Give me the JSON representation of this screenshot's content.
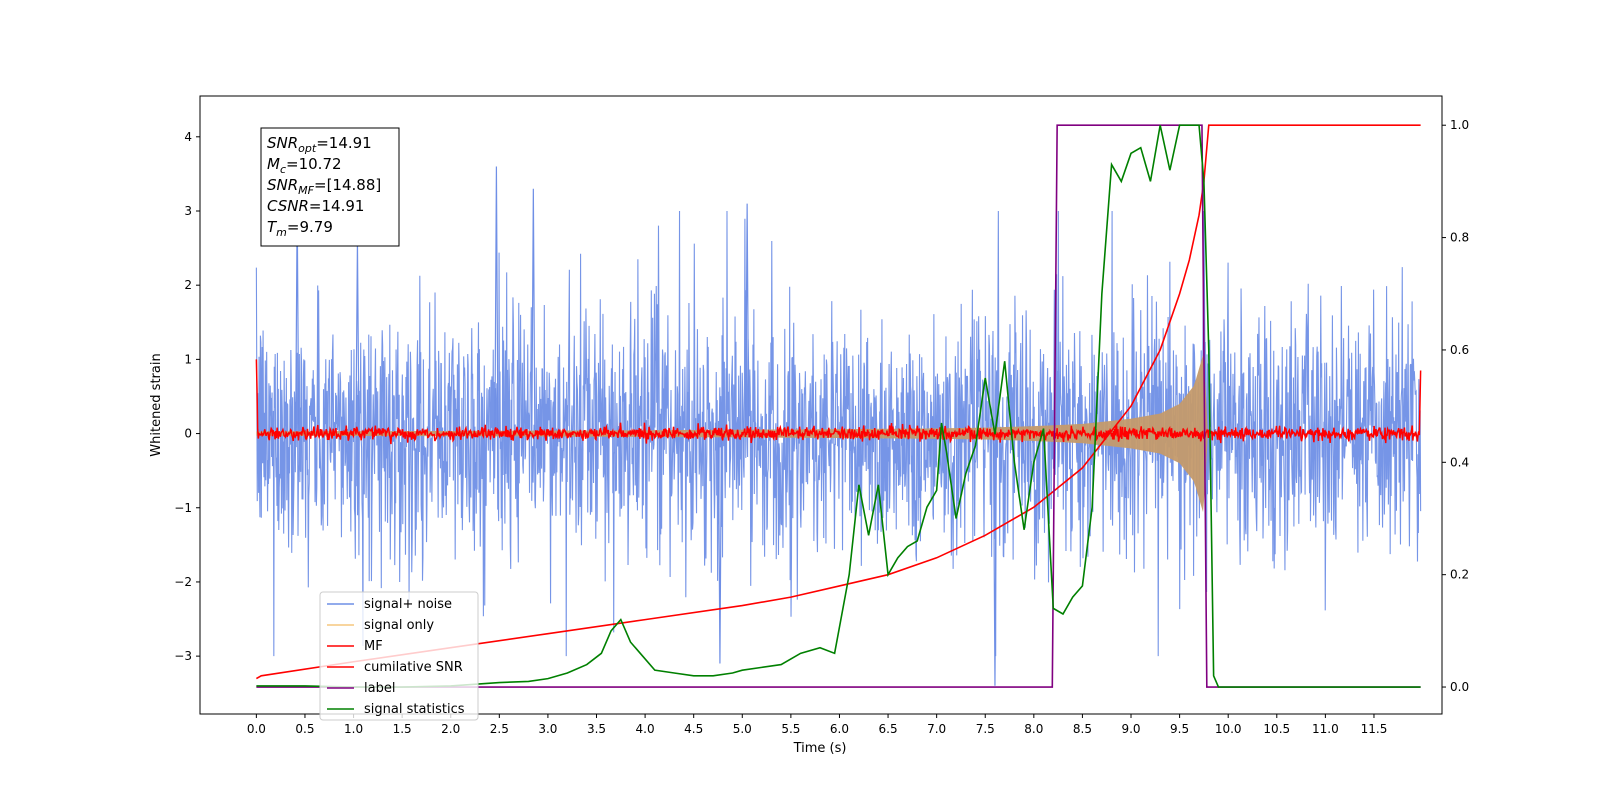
{
  "chart_data": {
    "type": "line",
    "xlabel": "Time (s)",
    "ylabel": "Whitened strain",
    "xlim": [
      -0.58,
      12.2
    ],
    "ylim": [
      -3.78,
      4.55
    ],
    "y2lim": [
      -0.048,
      1.052
    ],
    "grid": false,
    "legend_position": "lower-left",
    "x_ticks": [
      "0.0",
      "0.5",
      "1.0",
      "1.5",
      "2.0",
      "2.5",
      "3.0",
      "3.5",
      "4.0",
      "4.5",
      "5.0",
      "5.5",
      "6.0",
      "6.5",
      "7.0",
      "7.5",
      "8.0",
      "8.5",
      "9.0",
      "9.5",
      "10.0",
      "10.5",
      "11.0",
      "11.5"
    ],
    "y_ticks": [
      {
        "value": -3,
        "label": "−3"
      },
      {
        "value": -2,
        "label": "−2"
      },
      {
        "value": -1,
        "label": "−1"
      },
      {
        "value": 0,
        "label": "0"
      },
      {
        "value": 1,
        "label": "1"
      },
      {
        "value": 2,
        "label": "2"
      },
      {
        "value": 3,
        "label": "3"
      },
      {
        "value": 4,
        "label": "4"
      }
    ],
    "y2_ticks": [
      {
        "value": 0.0,
        "label": "0.0"
      },
      {
        "value": 0.2,
        "label": "0.2"
      },
      {
        "value": 0.4,
        "label": "0.4"
      },
      {
        "value": 0.6,
        "label": "0.6"
      },
      {
        "value": 0.8,
        "label": "0.8"
      },
      {
        "value": 1.0,
        "label": "1.0"
      }
    ],
    "annotation": {
      "lines": [
        {
          "base": "SNR",
          "sub": "opt",
          "rest": "=14.91"
        },
        {
          "base": "M",
          "sub": "c",
          "rest": "=10.72"
        },
        {
          "base": "SNR",
          "sub": "MF",
          "rest": "=[14.88]"
        },
        {
          "base": "CSNR",
          "sub": "",
          "rest": "=14.91"
        },
        {
          "base": "T",
          "sub": "m",
          "rest": "=9.79"
        }
      ]
    },
    "noise_envelope": {
      "x_range": [
        0.0,
        11.98
      ],
      "approx_amplitude": 1.3,
      "spike_peaks": [
        [
          0.42,
          3.1
        ],
        [
          1.04,
          2.6
        ],
        [
          2.47,
          3.6
        ],
        [
          2.85,
          3.3
        ],
        [
          5.05,
          3.1
        ],
        [
          7.6,
          -3.4
        ],
        [
          4.77,
          -3.1
        ],
        [
          9.75,
          3.0
        ]
      ]
    },
    "series": [
      {
        "name": "signal+ noise",
        "axis": "left",
        "color": "#6f8fe6",
        "note": "dense noise trace, approx. amplitude ±1.3 with spikes to ±3.6"
      },
      {
        "name": "signal only",
        "axis": "left",
        "color": "#f5c77e",
        "chirp": {
          "x": [
            0.0,
            2.0,
            4.0,
            6.0,
            7.0,
            7.5,
            8.0,
            8.5,
            9.0,
            9.3,
            9.5,
            9.65,
            9.75,
            9.79
          ],
          "amplitude": [
            0.03,
            0.035,
            0.045,
            0.06,
            0.07,
            0.08,
            0.1,
            0.13,
            0.2,
            0.27,
            0.4,
            0.65,
            1.1,
            0.0
          ]
        }
      },
      {
        "name": "MF",
        "axis": "left",
        "color": "#ff0000",
        "note": "matched-filter output, noisy around 0 with amplitude ≈0.1, spike to 1.0 at t=0.0 and 0.85 at t=11.98"
      },
      {
        "name": "cumilative SNR",
        "axis": "right",
        "color": "#ff0000",
        "x": [
          0.0,
          0.05,
          1.0,
          2.0,
          3.0,
          4.0,
          5.0,
          5.5,
          6.0,
          6.5,
          7.0,
          7.5,
          8.0,
          8.5,
          9.0,
          9.3,
          9.5,
          9.6,
          9.7,
          9.75,
          9.8,
          11.98
        ],
        "values": [
          0.015,
          0.02,
          0.045,
          0.07,
          0.095,
          0.12,
          0.145,
          0.16,
          0.18,
          0.2,
          0.23,
          0.27,
          0.32,
          0.39,
          0.5,
          0.6,
          0.7,
          0.76,
          0.84,
          0.9,
          1.0,
          1.0
        ]
      },
      {
        "name": "label",
        "axis": "right",
        "color": "#800080",
        "x": [
          0.0,
          8.19,
          8.24,
          9.73,
          9.78,
          11.98
        ],
        "values": [
          0.0,
          0.0,
          1.0,
          1.0,
          0.0,
          0.0
        ]
      },
      {
        "name": "signal statistics",
        "axis": "right",
        "color": "#008000",
        "x": [
          0.0,
          0.5,
          1.0,
          1.5,
          2.0,
          2.5,
          2.8,
          3.0,
          3.2,
          3.4,
          3.55,
          3.65,
          3.75,
          3.85,
          3.95,
          4.1,
          4.3,
          4.5,
          4.7,
          4.9,
          5.0,
          5.2,
          5.4,
          5.6,
          5.8,
          5.95,
          6.1,
          6.2,
          6.3,
          6.4,
          6.5,
          6.6,
          6.7,
          6.8,
          6.9,
          7.0,
          7.05,
          7.1,
          7.2,
          7.3,
          7.4,
          7.5,
          7.6,
          7.7,
          7.8,
          7.9,
          8.0,
          8.1,
          8.2,
          8.3,
          8.4,
          8.5,
          8.6,
          8.7,
          8.8,
          8.9,
          9.0,
          9.1,
          9.2,
          9.3,
          9.4,
          9.5,
          9.6,
          9.7,
          9.75,
          9.8,
          9.85,
          9.9,
          10.0,
          11.0,
          11.98
        ],
        "values": [
          0.002,
          0.002,
          0.0,
          0.0,
          0.002,
          0.008,
          0.01,
          0.015,
          0.025,
          0.04,
          0.06,
          0.1,
          0.12,
          0.08,
          0.06,
          0.03,
          0.025,
          0.02,
          0.02,
          0.025,
          0.03,
          0.035,
          0.04,
          0.06,
          0.07,
          0.06,
          0.2,
          0.36,
          0.27,
          0.36,
          0.2,
          0.23,
          0.25,
          0.26,
          0.32,
          0.35,
          0.47,
          0.42,
          0.3,
          0.38,
          0.43,
          0.55,
          0.45,
          0.58,
          0.4,
          0.28,
          0.4,
          0.46,
          0.14,
          0.13,
          0.16,
          0.18,
          0.32,
          0.7,
          0.93,
          0.9,
          0.95,
          0.96,
          0.9,
          1.0,
          0.92,
          1.0,
          1.0,
          1.0,
          0.9,
          0.6,
          0.02,
          0.0,
          0.0,
          0.0,
          0.0
        ]
      }
    ]
  }
}
